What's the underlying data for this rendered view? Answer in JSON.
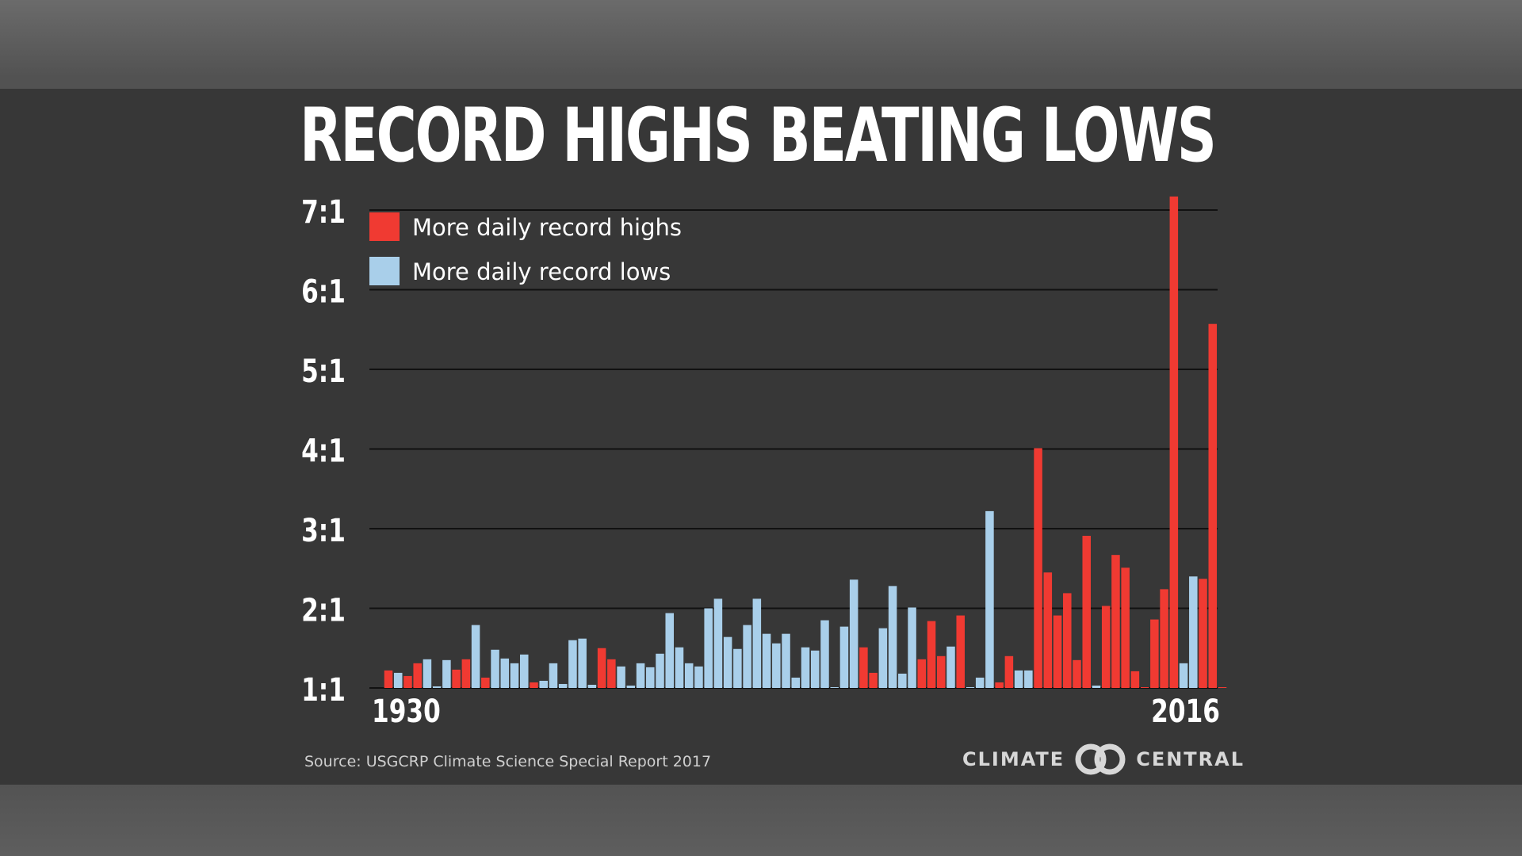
{
  "title": "RECORD HIGHS BEATING LOWS",
  "source": "Source: USGCRP Climate Science Special Report 2017",
  "brand": {
    "left_word": "CLIMATE",
    "right_word": "CENTRAL",
    "logo_icon": "interlocking-rings-icon"
  },
  "colors": {
    "highs": "#f03a32",
    "lows": "#a9cfea",
    "background": "#373737",
    "gridline": "#111111"
  },
  "chart_data": {
    "type": "bar",
    "title": "RECORD HIGHS BEATING LOWS",
    "xlabel": "",
    "ylabel": "",
    "x_start_label": "1930",
    "x_end_label": "2016",
    "ylim": [
      1,
      7.1
    ],
    "yticks": [
      1,
      2,
      3,
      4,
      5,
      6,
      7
    ],
    "ytick_labels": [
      "1:1",
      "2:1",
      "3:1",
      "4:1",
      "5:1",
      "6:1",
      "7:1"
    ],
    "grid": true,
    "legend_position": "top-left",
    "series": [
      {
        "name": "More daily record highs",
        "key": "high"
      },
      {
        "name": "More daily record lows",
        "key": "low"
      }
    ],
    "categories": [
      "1930",
      "1931",
      "1932",
      "1933",
      "1934",
      "1935",
      "1936",
      "1937",
      "1938",
      "1939",
      "1940",
      "1941",
      "1942",
      "1943",
      "1944",
      "1945",
      "1946",
      "1947",
      "1948",
      "1949",
      "1950",
      "1951",
      "1952",
      "1953",
      "1954",
      "1955",
      "1956",
      "1957",
      "1958",
      "1959",
      "1960",
      "1961",
      "1962",
      "1963",
      "1964",
      "1965",
      "1966",
      "1967",
      "1968",
      "1969",
      "1970",
      "1971",
      "1972",
      "1973",
      "1974",
      "1975",
      "1976",
      "1977",
      "1978",
      "1979",
      "1980",
      "1981",
      "1982",
      "1983",
      "1984",
      "1985",
      "1986",
      "1987",
      "1988",
      "1989",
      "1990",
      "1991",
      "1992",
      "1993",
      "1994",
      "1995",
      "1996",
      "1997",
      "1998",
      "1999",
      "2000",
      "2001",
      "2002",
      "2003",
      "2004",
      "2005",
      "2006",
      "2007",
      "2008",
      "2009",
      "2010",
      "2011",
      "2012",
      "2013",
      "2014",
      "2015",
      "2016"
    ],
    "values": [
      1.22,
      1.19,
      1.15,
      1.31,
      1.36,
      1.02,
      1.35,
      1.23,
      1.36,
      1.79,
      1.13,
      1.48,
      1.37,
      1.31,
      1.42,
      1.07,
      1.09,
      1.31,
      1.05,
      1.6,
      1.62,
      1.04,
      1.5,
      1.36,
      1.27,
      1.03,
      1.31,
      1.26,
      1.43,
      1.94,
      1.51,
      1.31,
      1.27,
      2.0,
      2.12,
      1.64,
      1.49,
      1.79,
      2.12,
      1.68,
      1.56,
      1.68,
      1.13,
      1.51,
      1.47,
      1.85,
      1.01,
      1.77,
      2.36,
      1.51,
      1.19,
      1.75,
      2.28,
      1.18,
      2.01,
      1.36,
      1.84,
      1.4,
      1.52,
      1.91,
      1.01,
      1.13,
      3.22,
      1.07,
      1.4,
      1.22,
      1.22,
      4.01,
      2.45,
      1.91,
      2.19,
      1.35,
      2.91,
      1.03,
      2.03,
      2.67,
      2.51,
      1.21,
      1.0,
      1.86,
      2.24,
      7.17,
      1.31,
      2.4,
      2.37,
      5.57,
      1.0
    ],
    "kinds": [
      "high",
      "low",
      "high",
      "high",
      "low",
      "low",
      "low",
      "high",
      "high",
      "low",
      "high",
      "low",
      "low",
      "low",
      "low",
      "high",
      "low",
      "low",
      "low",
      "low",
      "low",
      "low",
      "high",
      "high",
      "low",
      "low",
      "low",
      "low",
      "low",
      "low",
      "low",
      "low",
      "low",
      "low",
      "low",
      "low",
      "low",
      "low",
      "low",
      "low",
      "low",
      "low",
      "low",
      "low",
      "low",
      "low",
      "low",
      "low",
      "low",
      "high",
      "high",
      "low",
      "low",
      "low",
      "low",
      "high",
      "high",
      "high",
      "low",
      "high",
      "low",
      "low",
      "low",
      "high",
      "high",
      "low",
      "low",
      "high",
      "high",
      "high",
      "high",
      "high",
      "high",
      "low",
      "high",
      "high",
      "high",
      "high",
      "high",
      "high",
      "high",
      "high",
      "low",
      "low",
      "high",
      "high",
      "high"
    ]
  }
}
